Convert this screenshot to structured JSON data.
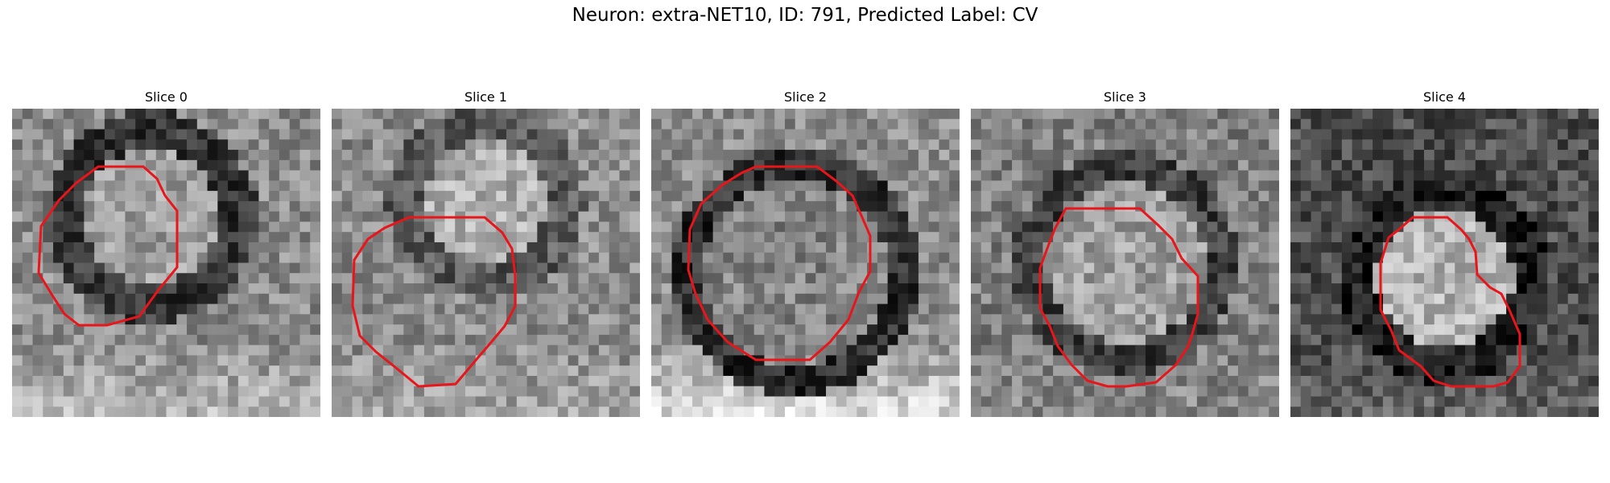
{
  "figure": {
    "title": "Neuron: extra-NET10, ID: 791, Predicted Label: CV"
  },
  "panels": [
    {
      "title": "Slice 0",
      "outline_color": "#e8161b"
    },
    {
      "title": "Slice 1",
      "outline_color": "#e8161b"
    },
    {
      "title": "Slice 2",
      "outline_color": "#e8161b"
    },
    {
      "title": "Slice 3",
      "outline_color": "#e8161b"
    },
    {
      "title": "Slice 4",
      "outline_color": "#e8161b"
    }
  ],
  "colormap": "gray"
}
